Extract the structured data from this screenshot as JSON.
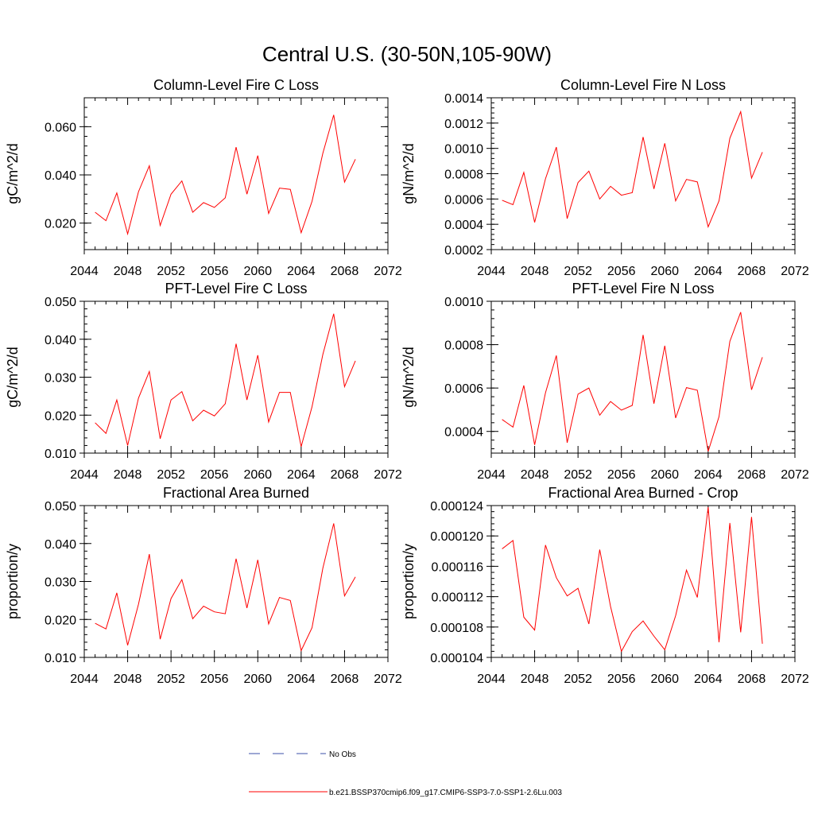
{
  "figure": {
    "title": "Central U.S. (30-50N,105-90W)"
  },
  "colors": {
    "series": "#ff0000",
    "obs": "#3b4fa8",
    "axis": "#000000"
  },
  "legend": [
    {
      "label": "No Obs",
      "style": "dashed",
      "color": "#3b4fa8"
    },
    {
      "label": "b.e21.BSSP370cmip6.f09_g17.CMIP6-SSP3-7.0-SSP1-2.6Lu.003",
      "style": "solid",
      "color": "#ff0000"
    }
  ],
  "chart_data": [
    {
      "type": "line",
      "title": "Column-Level Fire C Loss",
      "ylabel": "gC/m^2/d",
      "xlim": [
        2044,
        2072
      ],
      "ylim": [
        0.009,
        0.072
      ],
      "xticks": [
        "2044",
        "2048",
        "2052",
        "2056",
        "2060",
        "2064",
        "2068",
        "2072"
      ],
      "yticks": [
        {
          "v": 0.02,
          "label": "0.020"
        },
        {
          "v": 0.04,
          "label": "0.040"
        },
        {
          "v": 0.06,
          "label": "0.060"
        }
      ],
      "x": [
        2045,
        2046,
        2047,
        2048,
        2049,
        2050,
        2051,
        2052,
        2053,
        2054,
        2055,
        2056,
        2057,
        2058,
        2059,
        2060,
        2061,
        2062,
        2063,
        2064,
        2065,
        2066,
        2067,
        2068,
        2069
      ],
      "series": [
        {
          "values": [
            0.0245,
            0.021,
            0.0325,
            0.0155,
            0.033,
            0.0438,
            0.019,
            0.032,
            0.0375,
            0.0245,
            0.0285,
            0.0265,
            0.0305,
            0.0515,
            0.032,
            0.048,
            0.024,
            0.0345,
            0.034,
            0.016,
            0.029,
            0.049,
            0.0649,
            0.037,
            0.0465
          ]
        }
      ]
    },
    {
      "type": "line",
      "title": "Column-Level Fire N Loss",
      "ylabel": "gN/m^2/d",
      "xlim": [
        2044,
        2072
      ],
      "ylim": [
        0.0002,
        0.0014
      ],
      "xticks": [
        "2044",
        "2048",
        "2052",
        "2056",
        "2060",
        "2064",
        "2068",
        "2072"
      ],
      "yticks": [
        {
          "v": 0.0002,
          "label": "0.0002"
        },
        {
          "v": 0.0004,
          "label": "0.0004"
        },
        {
          "v": 0.0006,
          "label": "0.0006"
        },
        {
          "v": 0.0008,
          "label": "0.0008"
        },
        {
          "v": 0.001,
          "label": "0.0010"
        },
        {
          "v": 0.0012,
          "label": "0.0012"
        },
        {
          "v": 0.0014,
          "label": "0.0014"
        }
      ],
      "x": [
        2045,
        2046,
        2047,
        2048,
        2049,
        2050,
        2051,
        2052,
        2053,
        2054,
        2055,
        2056,
        2057,
        2058,
        2059,
        2060,
        2061,
        2062,
        2063,
        2064,
        2065,
        2066,
        2067,
        2068,
        2069
      ],
      "series": [
        {
          "values": [
            0.00059,
            0.000555,
            0.00081,
            0.000415,
            0.00076,
            0.00101,
            0.000445,
            0.00073,
            0.00082,
            0.0006,
            0.0007,
            0.00063,
            0.00065,
            0.00109,
            0.00068,
            0.00104,
            0.000585,
            0.000755,
            0.000735,
            0.00038,
            0.000585,
            0.00108,
            0.00129,
            0.000765,
            0.00097
          ]
        }
      ]
    },
    {
      "type": "line",
      "title": "PFT-Level Fire C Loss",
      "ylabel": "gC/m^2/d",
      "xlim": [
        2044,
        2072
      ],
      "ylim": [
        0.01,
        0.05
      ],
      "xticks": [
        "2044",
        "2048",
        "2052",
        "2056",
        "2060",
        "2064",
        "2068",
        "2072"
      ],
      "yticks": [
        {
          "v": 0.01,
          "label": "0.010"
        },
        {
          "v": 0.02,
          "label": "0.020"
        },
        {
          "v": 0.03,
          "label": "0.030"
        },
        {
          "v": 0.04,
          "label": "0.040"
        },
        {
          "v": 0.05,
          "label": "0.050"
        }
      ],
      "x": [
        2045,
        2046,
        2047,
        2048,
        2049,
        2050,
        2051,
        2052,
        2053,
        2054,
        2055,
        2056,
        2057,
        2058,
        2059,
        2060,
        2061,
        2062,
        2063,
        2064,
        2065,
        2066,
        2067,
        2068,
        2069
      ],
      "series": [
        {
          "values": [
            0.018,
            0.0152,
            0.024,
            0.012,
            0.0245,
            0.0315,
            0.0138,
            0.024,
            0.0262,
            0.0185,
            0.0213,
            0.0198,
            0.023,
            0.0388,
            0.024,
            0.0358,
            0.0182,
            0.026,
            0.026,
            0.0117,
            0.0222,
            0.036,
            0.0467,
            0.0275,
            0.0343
          ]
        }
      ]
    },
    {
      "type": "line",
      "title": "PFT-Level Fire N Loss",
      "ylabel": "gN/m^2/d",
      "xlim": [
        2044,
        2072
      ],
      "ylim": [
        0.0003,
        0.001
      ],
      "xticks": [
        "2044",
        "2048",
        "2052",
        "2056",
        "2060",
        "2064",
        "2068",
        "2072"
      ],
      "yticks": [
        {
          "v": 0.0004,
          "label": "0.0004"
        },
        {
          "v": 0.0006,
          "label": "0.0006"
        },
        {
          "v": 0.0008,
          "label": "0.0008"
        },
        {
          "v": 0.001,
          "label": "0.0010"
        }
      ],
      "x": [
        2045,
        2046,
        2047,
        2048,
        2049,
        2050,
        2051,
        2052,
        2053,
        2054,
        2055,
        2056,
        2057,
        2058,
        2059,
        2060,
        2061,
        2062,
        2063,
        2064,
        2065,
        2066,
        2067,
        2068,
        2069
      ],
      "series": [
        {
          "values": [
            0.000455,
            0.00042,
            0.000612,
            0.000338,
            0.000578,
            0.00075,
            0.000348,
            0.000572,
            0.0006,
            0.000475,
            0.000538,
            0.000498,
            0.00052,
            0.000845,
            0.000528,
            0.000795,
            0.000462,
            0.000602,
            0.00059,
            0.000308,
            0.000468,
            0.000815,
            0.00095,
            0.000592,
            0.000742
          ]
        }
      ]
    },
    {
      "type": "line",
      "title": "Fractional Area Burned",
      "ylabel": "proportion/y",
      "xlim": [
        2044,
        2072
      ],
      "ylim": [
        0.01,
        0.05
      ],
      "xticks": [
        "2044",
        "2048",
        "2052",
        "2056",
        "2060",
        "2064",
        "2068",
        "2072"
      ],
      "yticks": [
        {
          "v": 0.01,
          "label": "0.010"
        },
        {
          "v": 0.02,
          "label": "0.020"
        },
        {
          "v": 0.03,
          "label": "0.030"
        },
        {
          "v": 0.04,
          "label": "0.040"
        },
        {
          "v": 0.05,
          "label": "0.050"
        }
      ],
      "x": [
        2045,
        2046,
        2047,
        2048,
        2049,
        2050,
        2051,
        2052,
        2053,
        2054,
        2055,
        2056,
        2057,
        2058,
        2059,
        2060,
        2061,
        2062,
        2063,
        2064,
        2065,
        2066,
        2067,
        2068,
        2069
      ],
      "series": [
        {
          "values": [
            0.019,
            0.0175,
            0.027,
            0.0132,
            0.024,
            0.0372,
            0.0148,
            0.0255,
            0.0305,
            0.0202,
            0.0235,
            0.022,
            0.0215,
            0.036,
            0.023,
            0.0357,
            0.0188,
            0.0258,
            0.025,
            0.0118,
            0.0178,
            0.0335,
            0.0453,
            0.0262,
            0.0312
          ]
        }
      ]
    },
    {
      "type": "line",
      "title": "Fractional Area Burned - Crop",
      "ylabel": "proportion/y",
      "xlim": [
        2044,
        2072
      ],
      "ylim": [
        0.000104,
        0.000124
      ],
      "xticks": [
        "2044",
        "2048",
        "2052",
        "2056",
        "2060",
        "2064",
        "2068",
        "2072"
      ],
      "yticks": [
        {
          "v": 0.000104,
          "label": "0.000104"
        },
        {
          "v": 0.000108,
          "label": "0.000108"
        },
        {
          "v": 0.000112,
          "label": "0.000112"
        },
        {
          "v": 0.000116,
          "label": "0.000116"
        },
        {
          "v": 0.00012,
          "label": "0.000120"
        },
        {
          "v": 0.000124,
          "label": "0.000124"
        }
      ],
      "x": [
        2045,
        2046,
        2047,
        2048,
        2049,
        2050,
        2051,
        2052,
        2053,
        2054,
        2055,
        2056,
        2057,
        2058,
        2059,
        2060,
        2061,
        2062,
        2063,
        2064,
        2065,
        2066,
        2067,
        2068,
        2069
      ],
      "series": [
        {
          "values": [
            0.0001183,
            0.0001194,
            0.0001093,
            0.0001076,
            0.0001188,
            0.0001145,
            0.0001121,
            0.0001131,
            0.0001084,
            0.0001182,
            0.0001107,
            0.0001048,
            0.0001074,
            0.0001088,
            0.0001068,
            0.000105,
            0.0001095,
            0.0001155,
            0.0001119,
            0.0001238,
            0.000106,
            0.0001217,
            0.0001073,
            0.0001225,
            0.0001058
          ]
        }
      ]
    }
  ]
}
